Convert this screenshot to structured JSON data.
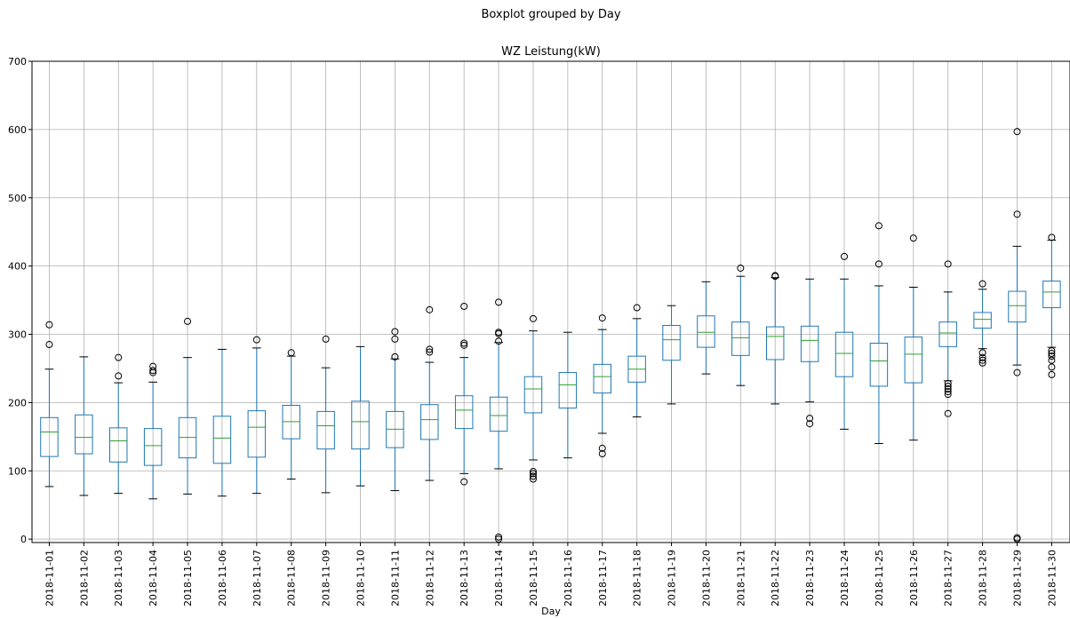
{
  "chart_data": {
    "type": "box",
    "suptitle": "Boxplot grouped by Day",
    "title": "WZ Leistung(kW)",
    "xlabel": "Day",
    "ylabel": "",
    "ylim": [
      -5,
      700
    ],
    "yticks": [
      0,
      100,
      200,
      300,
      400,
      500,
      600,
      700
    ],
    "grid": true,
    "colors": {
      "box": "#1f77b4",
      "median": "#2ca02c",
      "whisker": "#1f77b4",
      "flier": "#000000",
      "grid": "#b0b0b0"
    },
    "categories": [
      "2018-11-01",
      "2018-11-02",
      "2018-11-03",
      "2018-11-04",
      "2018-11-05",
      "2018-11-06",
      "2018-11-07",
      "2018-11-08",
      "2018-11-09",
      "2018-11-10",
      "2018-11-11",
      "2018-11-12",
      "2018-11-13",
      "2018-11-14",
      "2018-11-15",
      "2018-11-16",
      "2018-11-17",
      "2018-11-18",
      "2018-11-19",
      "2018-11-20",
      "2018-11-21",
      "2018-11-22",
      "2018-11-23",
      "2018-11-24",
      "2018-11-25",
      "2018-11-26",
      "2018-11-27",
      "2018-11-28",
      "2018-11-29",
      "2018-11-30"
    ],
    "boxes": [
      {
        "whislo": 77,
        "q1": 121,
        "med": 157,
        "q3": 178,
        "whishi": 249,
        "fliers": [
          285,
          314
        ]
      },
      {
        "whislo": 64,
        "q1": 125,
        "med": 149,
        "q3": 182,
        "whishi": 267,
        "fliers": []
      },
      {
        "whislo": 67,
        "q1": 113,
        "med": 144,
        "q3": 163,
        "whishi": 229,
        "fliers": [
          239,
          266
        ]
      },
      {
        "whislo": 59,
        "q1": 108,
        "med": 137,
        "q3": 162,
        "whishi": 230,
        "fliers": [
          244,
          247,
          253
        ]
      },
      {
        "whislo": 66,
        "q1": 119,
        "med": 149,
        "q3": 178,
        "whishi": 266,
        "fliers": [
          319
        ]
      },
      {
        "whislo": 63,
        "q1": 111,
        "med": 148,
        "q3": 180,
        "whishi": 278,
        "fliers": []
      },
      {
        "whislo": 67,
        "q1": 120,
        "med": 164,
        "q3": 188,
        "whishi": 280,
        "fliers": [
          292
        ]
      },
      {
        "whislo": 88,
        "q1": 147,
        "med": 172,
        "q3": 196,
        "whishi": 268,
        "fliers": [
          273
        ]
      },
      {
        "whislo": 68,
        "q1": 132,
        "med": 166,
        "q3": 187,
        "whishi": 251,
        "fliers": [
          293
        ]
      },
      {
        "whislo": 78,
        "q1": 132,
        "med": 172,
        "q3": 202,
        "whishi": 282,
        "fliers": []
      },
      {
        "whislo": 71,
        "q1": 134,
        "med": 161,
        "q3": 187,
        "whishi": 264,
        "fliers": [
          267,
          293,
          304
        ]
      },
      {
        "whislo": 86,
        "q1": 146,
        "med": 175,
        "q3": 197,
        "whishi": 259,
        "fliers": [
          274,
          278,
          336
        ]
      },
      {
        "whislo": 96,
        "q1": 162,
        "med": 189,
        "q3": 210,
        "whishi": 266,
        "fliers": [
          84,
          284,
          287,
          341
        ]
      },
      {
        "whislo": 103,
        "q1": 158,
        "med": 181,
        "q3": 208,
        "whishi": 288,
        "fliers": [
          0,
          3,
          290,
          301,
          303,
          347
        ]
      },
      {
        "whislo": 116,
        "q1": 185,
        "med": 220,
        "q3": 238,
        "whishi": 305,
        "fliers": [
          88,
          92,
          96,
          99,
          323
        ]
      },
      {
        "whislo": 119,
        "q1": 192,
        "med": 226,
        "q3": 244,
        "whishi": 303,
        "fliers": []
      },
      {
        "whislo": 155,
        "q1": 214,
        "med": 238,
        "q3": 256,
        "whishi": 307,
        "fliers": [
          125,
          133,
          324
        ]
      },
      {
        "whislo": 179,
        "q1": 230,
        "med": 249,
        "q3": 268,
        "whishi": 323,
        "fliers": [
          339
        ]
      },
      {
        "whislo": 198,
        "q1": 262,
        "med": 292,
        "q3": 313,
        "whishi": 342,
        "fliers": []
      },
      {
        "whislo": 242,
        "q1": 281,
        "med": 303,
        "q3": 327,
        "whishi": 377,
        "fliers": []
      },
      {
        "whislo": 225,
        "q1": 269,
        "med": 295,
        "q3": 318,
        "whishi": 385,
        "fliers": [
          397
        ]
      },
      {
        "whislo": 198,
        "q1": 263,
        "med": 297,
        "q3": 311,
        "whishi": 383,
        "fliers": [
          385,
          386
        ]
      },
      {
        "whislo": 201,
        "q1": 260,
        "med": 291,
        "q3": 312,
        "whishi": 381,
        "fliers": [
          169,
          177
        ]
      },
      {
        "whislo": 161,
        "q1": 238,
        "med": 272,
        "q3": 303,
        "whishi": 381,
        "fliers": [
          414
        ]
      },
      {
        "whislo": 140,
        "q1": 224,
        "med": 261,
        "q3": 287,
        "whishi": 371,
        "fliers": [
          403,
          459
        ]
      },
      {
        "whislo": 145,
        "q1": 229,
        "med": 271,
        "q3": 296,
        "whishi": 369,
        "fliers": [
          441
        ]
      },
      {
        "whislo": 232,
        "q1": 282,
        "med": 302,
        "q3": 318,
        "whishi": 362,
        "fliers": [
          184,
          212,
          216,
          220,
          224,
          228,
          403
        ]
      },
      {
        "whislo": 279,
        "q1": 309,
        "med": 322,
        "q3": 332,
        "whishi": 366,
        "fliers": [
          258,
          262,
          266,
          273,
          374
        ]
      },
      {
        "whislo": 255,
        "q1": 318,
        "med": 342,
        "q3": 363,
        "whishi": 429,
        "fliers": [
          0,
          2,
          244,
          476,
          597
        ]
      },
      {
        "whislo": 281,
        "q1": 339,
        "med": 362,
        "q3": 378,
        "whishi": 438,
        "fliers": [
          241,
          252,
          262,
          268,
          272,
          276,
          442
        ]
      }
    ]
  }
}
